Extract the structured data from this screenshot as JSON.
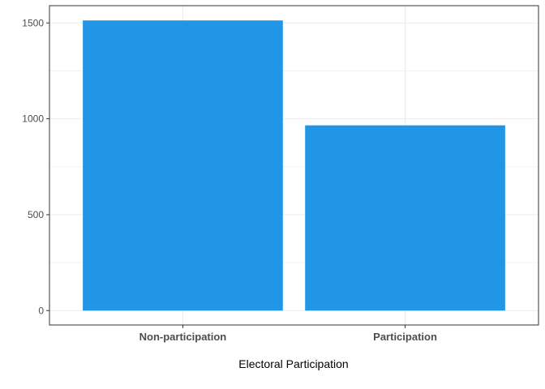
{
  "chart_data": {
    "type": "bar",
    "title": "",
    "xlabel": "Electoral Participation",
    "ylabel": "",
    "categories": [
      "Non-participation",
      "Participation"
    ],
    "values": [
      1513,
      966
    ],
    "ylim": [
      -75,
      1590
    ],
    "yticks": [
      0,
      500,
      1000,
      1500
    ],
    "ytick_labels": [
      "0",
      "500",
      "1000",
      "1500"
    ],
    "grid": true,
    "legend": "none",
    "colors": {
      "bar": "#2196E6",
      "grid": "#ebebeb",
      "panel_border": "#333333",
      "tick_text": "#4d4d4d"
    }
  }
}
